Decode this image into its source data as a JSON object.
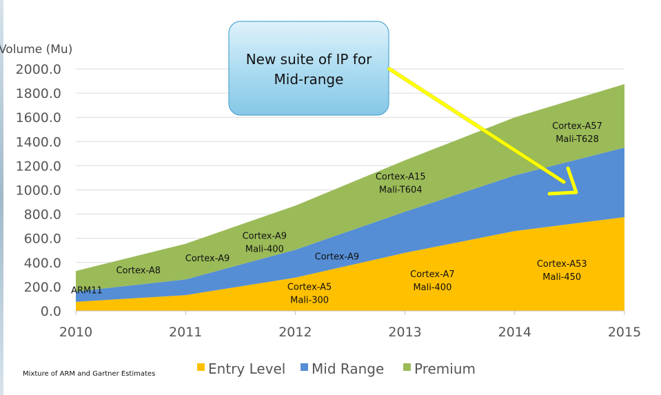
{
  "chart_data": {
    "type": "area",
    "stacked": true,
    "x": [
      "2010",
      "2011",
      "2012",
      "2013",
      "2014",
      "2015"
    ],
    "series": [
      {
        "name": "Entry Level",
        "color": "#FFC000",
        "values": [
          75,
          130,
          275,
          480,
          660,
          775
        ]
      },
      {
        "name": "Mid Range",
        "color": "#558ED5",
        "values": [
          85,
          130,
          230,
          340,
          460,
          575
        ]
      },
      {
        "name": "Premium",
        "color": "#9BBB59",
        "values": [
          170,
          295,
          365,
          425,
          480,
          525
        ]
      }
    ],
    "ylabel": "Volume (Mu)",
    "ylim": [
      0,
      2000
    ],
    "yticks": [
      "0.0",
      "200.0",
      "400.0",
      "600.0",
      "800.0",
      "1000.0",
      "1200.0",
      "1400.0",
      "1600.0",
      "1800.0",
      "2000.0"
    ],
    "grid": true,
    "legend": "bottom",
    "annotations": [
      {
        "lines": [
          "ARM11"
        ],
        "x": 2010.1,
        "y": 145,
        "color": "#1F497D"
      },
      {
        "lines": [
          "Cortex-A8"
        ],
        "x": 2010.57,
        "y": 310
      },
      {
        "lines": [
          "Cortex-A9"
        ],
        "x": 2011.2,
        "y": 410
      },
      {
        "lines": [
          "Cortex-A9",
          "Mali-400"
        ],
        "x": 2011.72,
        "y": 595
      },
      {
        "lines": [
          "Cortex-A9"
        ],
        "x": 2012.38,
        "y": 425
      },
      {
        "lines": [
          "Cortex-A5",
          "Mali-300"
        ],
        "x": 2012.13,
        "y": 175
      },
      {
        "lines": [
          "Cortex-A7",
          "Mali-400"
        ],
        "x": 2013.25,
        "y": 280
      },
      {
        "lines": [
          "Cortex-A15",
          "Mali-T604"
        ],
        "x": 2012.96,
        "y": 1085
      },
      {
        "lines": [
          "Cortex-A57",
          "Mali-T628"
        ],
        "x": 2014.57,
        "y": 1505
      },
      {
        "lines": [
          "Cortex-A53",
          "Mali-450"
        ],
        "x": 2014.43,
        "y": 365
      }
    ],
    "callout": {
      "lines": [
        "New suite of IP for",
        "Mid-range"
      ]
    },
    "footnote": "Mixture of ARM and Gartner Estimates"
  }
}
